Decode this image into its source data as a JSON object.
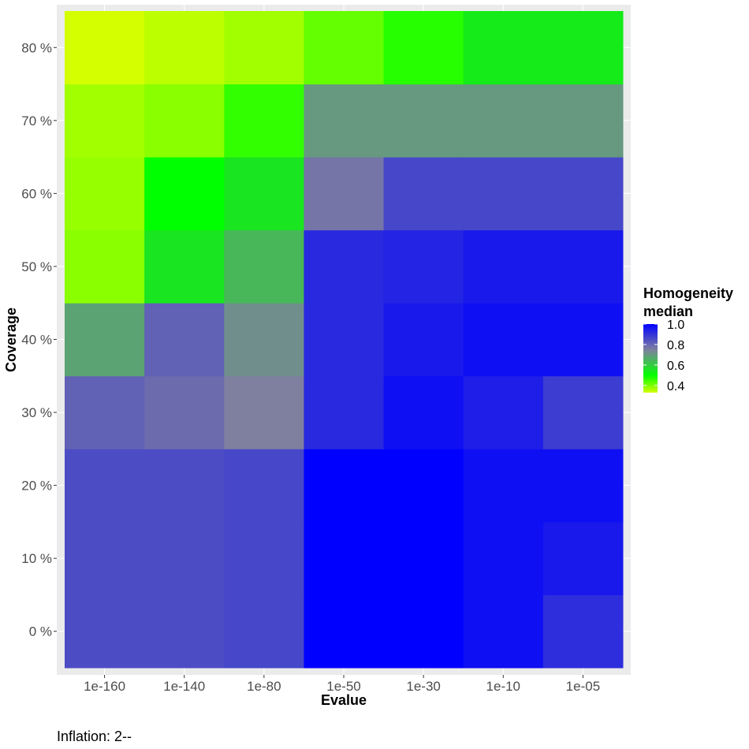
{
  "chart_data": {
    "type": "heatmap",
    "xlabel": "Evalue",
    "ylabel": "Coverage",
    "x_categories": [
      "1e-160",
      "1e-140",
      "1e-80",
      "1e-50",
      "1e-30",
      "1e-10",
      "1e-05"
    ],
    "y_categories": [
      "0 %",
      "10 %",
      "20 %",
      "30 %",
      "40 %",
      "50 %",
      "60 %",
      "70 %",
      "80 %"
    ],
    "values": [
      [
        0.85,
        0.85,
        0.86,
        1.0,
        1.0,
        0.97,
        0.91
      ],
      [
        0.85,
        0.85,
        0.86,
        1.0,
        1.0,
        0.97,
        0.95
      ],
      [
        0.85,
        0.85,
        0.86,
        1.0,
        1.0,
        0.97,
        0.97
      ],
      [
        0.81,
        0.79,
        0.75,
        0.92,
        0.97,
        0.94,
        0.88
      ],
      [
        0.68,
        0.81,
        0.72,
        0.92,
        0.95,
        0.97,
        0.97
      ],
      [
        0.39,
        0.55,
        0.64,
        0.92,
        0.93,
        0.95,
        0.95
      ],
      [
        0.38,
        0.5,
        0.55,
        0.77,
        0.86,
        0.86,
        0.86
      ],
      [
        0.37,
        0.39,
        0.46,
        0.7,
        0.7,
        0.7,
        0.7
      ],
      [
        0.33,
        0.35,
        0.37,
        0.42,
        0.47,
        0.54,
        0.54
      ]
    ],
    "legend": {
      "title_lines": [
        "Homogeneity",
        "median"
      ],
      "ticks": [
        "1.0",
        "0.8",
        "0.6",
        "0.4"
      ],
      "tick_values": [
        1.0,
        0.8,
        0.6,
        0.4
      ],
      "range": [
        0.33,
        1.0
      ],
      "colors": {
        "low": "#d4ff00",
        "mid": "#00ff00",
        "mid_value": 0.5,
        "high_mid": "#7f7f9f",
        "high": "#0000ff"
      }
    },
    "grid": true,
    "legend_position": "right"
  },
  "caption": "Inflation: 2--"
}
